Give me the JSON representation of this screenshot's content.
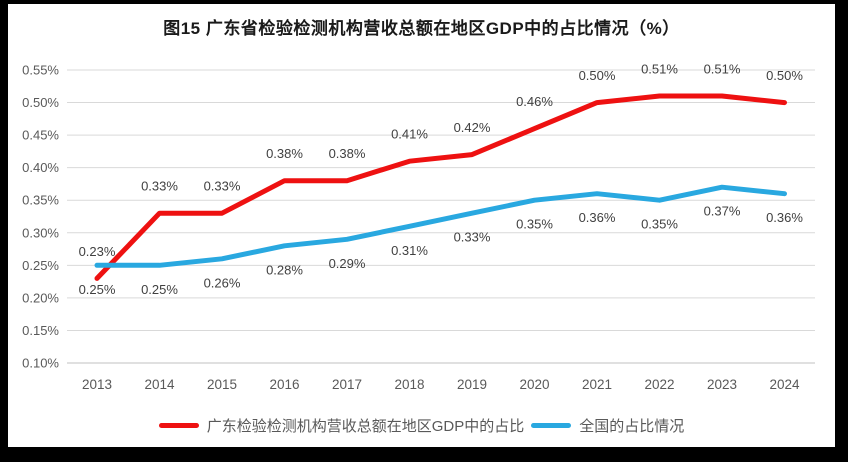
{
  "frame": {
    "border_color": "#000000",
    "background": "#ffffff"
  },
  "chart_data": {
    "type": "line",
    "title": "图15  广东省检验检测机构营收总额在地区GDP中的占比情况（%）",
    "categories": [
      "2013",
      "2014",
      "2015",
      "2016",
      "2017",
      "2018",
      "2019",
      "2020",
      "2021",
      "2022",
      "2023",
      "2024"
    ],
    "series": [
      {
        "name": "广东检验检测机构营收总额在地区GDP中的占比",
        "color": "#ee1111",
        "values": [
          0.23,
          0.33,
          0.33,
          0.38,
          0.38,
          0.41,
          0.42,
          0.46,
          0.5,
          0.51,
          0.51,
          0.5
        ],
        "data_labels": [
          "0.23%",
          "0.33%",
          "0.33%",
          "0.38%",
          "0.38%",
          "0.41%",
          "0.42%",
          "0.46%",
          "0.50%",
          "0.51%",
          "0.51%",
          "0.50%"
        ],
        "label_position": "above"
      },
      {
        "name": "全国的占比情况",
        "color": "#29a8e0",
        "values": [
          0.25,
          0.25,
          0.26,
          0.28,
          0.29,
          0.31,
          0.33,
          0.35,
          0.36,
          0.35,
          0.37,
          0.36
        ],
        "data_labels": [
          "0.25%",
          "0.25%",
          "0.26%",
          "0.28%",
          "0.29%",
          "0.31%",
          "0.33%",
          "0.35%",
          "0.36%",
          "0.35%",
          "0.37%",
          "0.36%"
        ],
        "label_position": "below"
      }
    ],
    "y_axis": {
      "min": 0.1,
      "max": 0.55,
      "step": 0.05,
      "tick_labels": [
        "0.55%",
        "0.50%",
        "0.45%",
        "0.40%",
        "0.35%",
        "0.30%",
        "0.25%",
        "0.20%",
        "0.15%",
        "0.10%"
      ]
    },
    "x_axis_label": "",
    "y_axis_label": "",
    "grid": true,
    "gridline_color": "#d9d9d9",
    "bottom_gridline_color": "#c0c0c0",
    "axis_text_color": "#595959",
    "data_label_color": "#404040",
    "legend_position": "bottom"
  }
}
